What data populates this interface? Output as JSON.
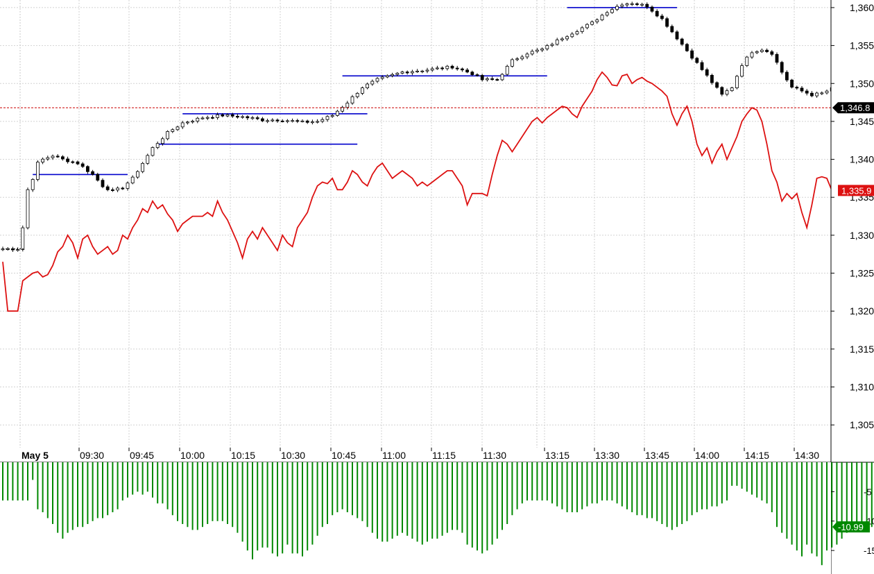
{
  "chart_data": [
    {
      "type": "candlestick",
      "title": "",
      "date_label": "May 5",
      "x_tick_labels": [
        "09:30",
        "09:45",
        "10:00",
        "10:15",
        "10:30",
        "10:45",
        "11:00",
        "11:15",
        "11:30",
        "13:15",
        "13:30",
        "13:45",
        "14:00",
        "14:15",
        "14:30"
      ],
      "y_axis": {
        "ylim": [
          1302,
          1361
        ],
        "tick_values": [
          1305,
          1310,
          1315,
          1320,
          1325,
          1330,
          1335,
          1340,
          1345,
          1350,
          1355,
          1360
        ],
        "tick_labels": [
          "1,305",
          "1,310",
          "1,315",
          "1,320",
          "1,325",
          "1,330",
          "1,335",
          "1,340",
          "1,345",
          "1,350",
          "1,355",
          "1,360"
        ]
      },
      "grid": true,
      "price_series_anchors": [
        [
          0,
          1328.2
        ],
        [
          3,
          1328.2
        ],
        [
          4,
          1331
        ],
        [
          5,
          1336
        ],
        [
          6,
          1337.5
        ],
        [
          7,
          1339.5
        ],
        [
          8,
          1340
        ],
        [
          10,
          1340.5
        ],
        [
          12,
          1340
        ],
        [
          15,
          1339.5
        ],
        [
          18,
          1338
        ],
        [
          20,
          1336.5
        ],
        [
          22,
          1335.8
        ],
        [
          24,
          1336.3
        ],
        [
          26,
          1337.5
        ],
        [
          28,
          1339.5
        ],
        [
          30,
          1341.5
        ],
        [
          33,
          1343.5
        ],
        [
          36,
          1344.8
        ],
        [
          40,
          1345.5
        ],
        [
          44,
          1345.8
        ],
        [
          48,
          1345.6
        ],
        [
          52,
          1345.2
        ],
        [
          56,
          1345.2
        ],
        [
          60,
          1344.9
        ],
        [
          63,
          1345
        ],
        [
          66,
          1345.8
        ],
        [
          69,
          1347.5
        ],
        [
          72,
          1349.5
        ],
        [
          75,
          1350.5
        ],
        [
          80,
          1351.5
        ],
        [
          85,
          1351.8
        ],
        [
          90,
          1352.2
        ],
        [
          94,
          1351.3
        ],
        [
          96,
          1350.5
        ],
        [
          99,
          1350.5
        ],
        [
          102,
          1353
        ],
        [
          105,
          1354
        ],
        [
          108,
          1354.5
        ],
        [
          112,
          1356
        ],
        [
          115,
          1357
        ],
        [
          118,
          1358
        ],
        [
          121,
          1359.5
        ],
        [
          124,
          1360.5
        ],
        [
          126,
          1360.6
        ],
        [
          129,
          1360.2
        ],
        [
          132,
          1358.5
        ],
        [
          135,
          1356
        ],
        [
          138,
          1353.5
        ],
        [
          141,
          1351
        ],
        [
          144,
          1348.5
        ],
        [
          146,
          1349.5
        ],
        [
          148,
          1352.5
        ],
        [
          150,
          1354.2
        ],
        [
          152,
          1354.5
        ],
        [
          154,
          1354
        ],
        [
          156,
          1351.5
        ],
        [
          158,
          1349.5
        ],
        [
          160,
          1349
        ],
        [
          162,
          1348.5
        ],
        [
          164,
          1348.7
        ],
        [
          166,
          1349.3
        ],
        [
          167,
          1349.5
        ],
        [
          168,
          1346.8
        ]
      ],
      "candle_count": 169,
      "last_price": {
        "label": "1,346.8",
        "value": 1346.8,
        "bg_color": "#000000"
      },
      "blue_levels": [
        {
          "y": 1338,
          "i_start": 6,
          "i_end": 25
        },
        {
          "y": 1346,
          "i_start": 36,
          "i_end": 73
        },
        {
          "y": 1342,
          "i_start": 31,
          "i_end": 71
        },
        {
          "y": 1351,
          "i_start": 68,
          "i_end": 109
        },
        {
          "y": 1360,
          "i_start": 113,
          "i_end": 135
        }
      ],
      "red_series": {
        "color": "#dd1111",
        "label": "1,335.9",
        "last_value": 1335.9,
        "values": [
          1326.5,
          1320,
          1320,
          1320,
          1324,
          1324.5,
          1325,
          1325.2,
          1324.5,
          1324.8,
          1326,
          1327.8,
          1328.5,
          1330,
          1329,
          1327,
          1329.5,
          1330,
          1328.5,
          1327.5,
          1328,
          1328.5,
          1327.5,
          1328,
          1330,
          1329.5,
          1331,
          1332,
          1333.5,
          1333,
          1334.5,
          1333.5,
          1334,
          1332.8,
          1332,
          1330.5,
          1331.5,
          1332,
          1332.5,
          1332.5,
          1332.5,
          1333,
          1332.5,
          1334.5,
          1333,
          1332,
          1330.5,
          1329,
          1327,
          1329.5,
          1330.5,
          1329.5,
          1331,
          1330,
          1329,
          1328,
          1330,
          1329,
          1328.5,
          1331,
          1332,
          1333,
          1335,
          1336.5,
          1337,
          1336.8,
          1337.5,
          1336,
          1336,
          1337,
          1338.5,
          1338,
          1337,
          1336.5,
          1338,
          1339,
          1339.5,
          1338.5,
          1337.5,
          1338,
          1338.5,
          1338,
          1337.5,
          1336.5,
          1337,
          1336.5,
          1337,
          1337.5,
          1338,
          1338.5,
          1338.5,
          1337.5,
          1336.5,
          1334,
          1335.5,
          1335.5,
          1335.5,
          1335.2,
          1338,
          1340.5,
          1342.5,
          1342,
          1341,
          1342,
          1343,
          1344,
          1345,
          1345.5,
          1344.8,
          1345.5,
          1346,
          1346.5,
          1347,
          1346.8,
          1346,
          1345.5,
          1347,
          1348,
          1349,
          1350.5,
          1351.5,
          1350.8,
          1349.8,
          1349.7,
          1351,
          1351.2,
          1350,
          1350.5,
          1350.8,
          1350.3,
          1350,
          1349.5,
          1349,
          1348.3,
          1346,
          1344.5,
          1346,
          1347,
          1345,
          1342,
          1340.5,
          1341.5,
          1339.5,
          1341,
          1342,
          1340,
          1341.5,
          1343,
          1345,
          1346,
          1346.8,
          1346.5,
          1345,
          1342,
          1338.5,
          1337,
          1334.5,
          1335.5,
          1334.8,
          1335.5,
          1333,
          1331,
          1334,
          1337.5,
          1337.7,
          1337.5,
          1335.9,
          1335.9,
          1335.9,
          1335.9,
          1335.9,
          1335.9,
          1335.9
        ]
      }
    },
    {
      "type": "bar",
      "title": "",
      "bar_color": "#008800",
      "y_axis": {
        "ylim": [
          -19,
          0
        ],
        "tick_values": [
          -5,
          -10,
          -15
        ],
        "tick_labels": [
          "-5",
          "-10",
          "-15"
        ]
      },
      "last_value": {
        "label": "-10.99",
        "value": -10.99,
        "bg_color": "#008800"
      },
      "values": [
        -6.5,
        -6.5,
        -6.5,
        -6.5,
        -6.5,
        -6.5,
        -3,
        -8,
        -8.5,
        -9.5,
        -10.5,
        -12,
        -13,
        -12,
        -11.5,
        -11,
        -11,
        -10.5,
        -10,
        -9.5,
        -9.5,
        -9,
        -8.5,
        -8,
        -6.5,
        -6,
        -5.5,
        -5,
        -5.5,
        -5,
        -6,
        -7,
        -7,
        -8,
        -9,
        -10,
        -10.5,
        -11,
        -11.5,
        -11.5,
        -11,
        -10.5,
        -10,
        -10,
        -10,
        -10.5,
        -11,
        -12,
        -13.5,
        -15,
        -16.5,
        -15,
        -14.5,
        -14.5,
        -15.5,
        -16,
        -15.5,
        -14,
        -15.5,
        -15.5,
        -16,
        -15,
        -14,
        -12.5,
        -11,
        -10.5,
        -9,
        -8.5,
        -8,
        -8.5,
        -9,
        -9.5,
        -10,
        -11,
        -12,
        -13,
        -13.5,
        -13.5,
        -13,
        -12.5,
        -12,
        -12.5,
        -13,
        -13.5,
        -14,
        -13.5,
        -13,
        -13,
        -12.5,
        -12,
        -11.5,
        -11.5,
        -12,
        -14,
        -14.5,
        -15,
        -15.5,
        -15,
        -14,
        -13,
        -11.5,
        -10.5,
        -9,
        -8,
        -7,
        -6.5,
        -6.5,
        -6.5,
        -6.5,
        -6.5,
        -7,
        -7.5,
        -8,
        -8.5,
        -8.5,
        -8.5,
        -8,
        -7.5,
        -7,
        -7,
        -6.5,
        -6.5,
        -6.5,
        -7,
        -7.5,
        -8,
        -8.5,
        -9,
        -9,
        -9.5,
        -9.5,
        -10,
        -10.5,
        -11,
        -11.5,
        -11,
        -10.5,
        -10,
        -9,
        -8.5,
        -8,
        -8,
        -7.5,
        -7.5,
        -7,
        -6.5,
        -4,
        -4,
        -4.5,
        -5,
        -5.5,
        -6,
        -6.5,
        -7,
        -8.5,
        -11,
        -12,
        -13,
        -14,
        -15,
        -16,
        -14,
        -15.5,
        -16,
        -17.5,
        -15,
        -14.5,
        -14,
        -13,
        -12,
        -11.5,
        -11,
        -11,
        -11,
        -11,
        -11,
        -11,
        -11,
        -11
      ]
    }
  ]
}
